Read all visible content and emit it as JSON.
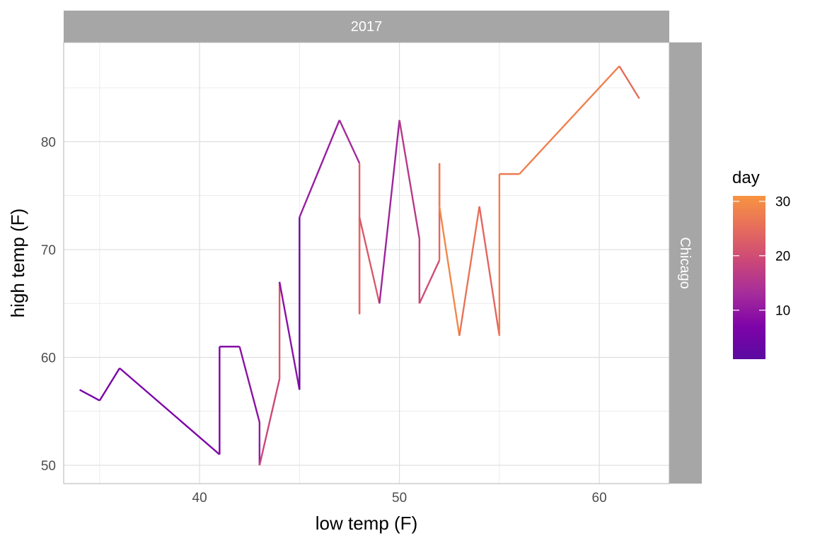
{
  "chart_data": {
    "type": "line",
    "facet_col_label": "2017",
    "facet_row_label": "Chicago",
    "xlabel": "low temp (F)",
    "ylabel": "high temp (F)",
    "xlim": [
      33.2,
      63.5
    ],
    "ylim": [
      48.3,
      89.2
    ],
    "x_ticks": [
      40,
      50,
      60
    ],
    "y_ticks": [
      50,
      60,
      70,
      80
    ],
    "x_tick_labels": [
      "40",
      "50",
      "60"
    ],
    "y_tick_labels": [
      "50",
      "60",
      "70",
      "80"
    ],
    "grid": true,
    "color_legend": {
      "title": "day",
      "range": [
        1,
        31
      ],
      "ticks": [
        10,
        20,
        30
      ],
      "tick_labels": [
        "10",
        "20",
        "30"
      ],
      "colors": [
        "#5a0aa0",
        "#7e03a8",
        "#a52c9b",
        "#cb4778",
        "#e66c5c",
        "#f89441"
      ],
      "placement": "right"
    },
    "series": [
      {
        "points": [
          {
            "x": 34,
            "y": 57,
            "day": 6
          },
          {
            "x": 35,
            "y": 56,
            "day": 6
          },
          {
            "x": 36,
            "y": 59,
            "day": 7
          },
          {
            "x": 41,
            "y": 51,
            "day": 7
          },
          {
            "x": 41,
            "y": 61,
            "day": 8
          },
          {
            "x": 42,
            "y": 61,
            "day": 9
          },
          {
            "x": 43,
            "y": 54,
            "day": 10
          },
          {
            "x": 43,
            "y": 50,
            "day": 19
          },
          {
            "x": 44,
            "y": 58,
            "day": 22
          },
          {
            "x": 44,
            "y": 67,
            "day": 9
          },
          {
            "x": 45,
            "y": 57,
            "day": 4
          },
          {
            "x": 45,
            "y": 73,
            "day": 11
          },
          {
            "x": 47,
            "y": 82,
            "day": 13
          },
          {
            "x": 48,
            "y": 78,
            "day": 23
          },
          {
            "x": 48,
            "y": 64,
            "day": 24
          },
          {
            "x": 48,
            "y": 73,
            "day": 22
          },
          {
            "x": 49,
            "y": 65,
            "day": 12
          },
          {
            "x": 50,
            "y": 82,
            "day": 16
          },
          {
            "x": 51,
            "y": 71,
            "day": 18
          },
          {
            "x": 51,
            "y": 65,
            "day": 20
          },
          {
            "x": 52,
            "y": 69,
            "day": 24
          },
          {
            "x": 52,
            "y": 78,
            "day": 27
          },
          {
            "x": 52,
            "y": 74,
            "day": 29
          },
          {
            "x": 53,
            "y": 62,
            "day": 26
          },
          {
            "x": 54,
            "y": 74,
            "day": 24
          },
          {
            "x": 55,
            "y": 62,
            "day": 28
          },
          {
            "x": 55,
            "y": 77,
            "day": 27
          },
          {
            "x": 56,
            "y": 77,
            "day": 28
          },
          {
            "x": 61,
            "y": 87,
            "day": 25
          },
          {
            "x": 62,
            "y": 84,
            "day": 19
          }
        ]
      }
    ]
  }
}
